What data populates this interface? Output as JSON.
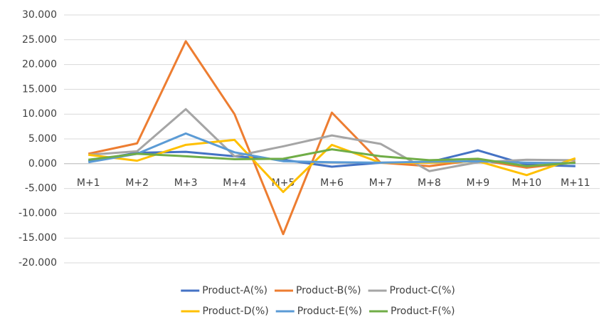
{
  "chart_data": {
    "type": "line",
    "categories": [
      "M+1",
      "M+2",
      "M+3",
      "M+4",
      "M+5",
      "M+6",
      "M+7",
      "M+8",
      "M+9",
      "M+10",
      "M+11"
    ],
    "series": [
      {
        "name": "Product-A(%)",
        "color": "#4472c4",
        "values": [
          0.5,
          2.2,
          2.4,
          1.5,
          0.8,
          -0.6,
          0.2,
          0.3,
          2.7,
          -0.2,
          -0.5
        ]
      },
      {
        "name": "Product-B(%)",
        "color": "#ed7d31",
        "values": [
          2.0,
          4.1,
          24.7,
          10.0,
          -14.2,
          10.3,
          0.2,
          -0.5,
          0.8,
          -0.8,
          0.3
        ]
      },
      {
        "name": "Product-C(%)",
        "color": "#a5a5a5",
        "values": [
          1.8,
          2.5,
          11.0,
          1.5,
          3.5,
          5.7,
          4.0,
          -1.5,
          0.3,
          0.8,
          0.7
        ]
      },
      {
        "name": "Product-D(%)",
        "color": "#ffc000",
        "values": [
          1.8,
          0.6,
          3.8,
          4.8,
          -5.7,
          3.8,
          0.2,
          0.2,
          0.5,
          -2.3,
          1.1
        ]
      },
      {
        "name": "Product-E(%)",
        "color": "#5b9bd5",
        "values": [
          0.3,
          2.0,
          6.1,
          2.3,
          0.5,
          0.3,
          0.2,
          0.4,
          0.5,
          0.2,
          0.1
        ]
      },
      {
        "name": "Product-F(%)",
        "color": "#70ad47",
        "values": [
          0.8,
          2.0,
          1.5,
          0.9,
          1.0,
          2.9,
          1.5,
          0.7,
          1.0,
          -0.5,
          0.2
        ]
      }
    ],
    "ylim": [
      -20,
      30
    ],
    "yticks": [
      {
        "value": -20,
        "label": "-20.000"
      },
      {
        "value": -15,
        "label": "-15.000"
      },
      {
        "value": -10,
        "label": "-10.000"
      },
      {
        "value": -5,
        "label": "-5.000"
      },
      {
        "value": 0,
        "label": "0.000"
      },
      {
        "value": 5,
        "label": "5.000"
      },
      {
        "value": 10,
        "label": "10.000"
      },
      {
        "value": 15,
        "label": "15.000"
      },
      {
        "value": 20,
        "label": "20.000"
      },
      {
        "value": 25,
        "label": "25.000"
      },
      {
        "value": 30,
        "label": "30.000"
      }
    ],
    "grid": true,
    "legend": "bottom"
  }
}
